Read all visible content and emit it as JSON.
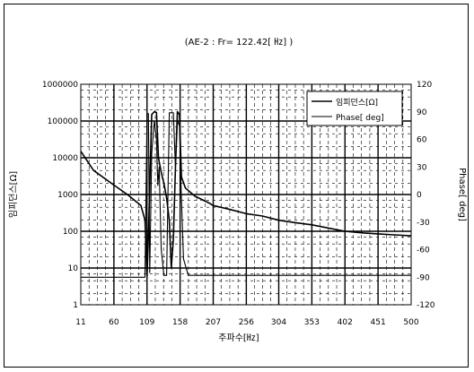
{
  "chart_data": {
    "type": "line",
    "title": "(AE-2 : Fr= 122.42[ ㎐] )",
    "xlabel": "주파수[㎐]",
    "ylabel": "임피던스[Ω]",
    "y2label": "Phase[ deg]",
    "x_ticks": [
      "11",
      "60",
      "109",
      "158",
      "207",
      "256",
      "304",
      "353",
      "402",
      "451",
      "500"
    ],
    "xlim": [
      11,
      500
    ],
    "y_scale": "log",
    "ylim": [
      1,
      1000000
    ],
    "y_ticks": [
      "1000000",
      "100000",
      "10000",
      "1000",
      "100",
      "10",
      "1"
    ],
    "y2lim": [
      -120,
      120
    ],
    "y2_ticks": [
      "120",
      "90",
      "60",
      "30",
      "0",
      "-30",
      "-60",
      "-90",
      "-120"
    ],
    "grid": true,
    "legend_position": "top-right",
    "series": [
      {
        "name": "임피던스[Ω]",
        "axis": "left",
        "points": [
          [
            11,
            15000
          ],
          [
            30,
            4500
          ],
          [
            60,
            1800
          ],
          [
            80,
            1000
          ],
          [
            100,
            500
          ],
          [
            106,
            200
          ],
          [
            109,
            6
          ],
          [
            111,
            80
          ],
          [
            116,
            150000
          ],
          [
            120,
            180000
          ],
          [
            123,
            170000
          ],
          [
            126,
            10000
          ],
          [
            130,
            4000
          ],
          [
            134,
            2000
          ],
          [
            138,
            800
          ],
          [
            142,
            200
          ],
          [
            145,
            10
          ],
          [
            148,
            60
          ],
          [
            151,
            5000
          ],
          [
            154,
            180000
          ],
          [
            157,
            150000
          ],
          [
            160,
            3000
          ],
          [
            166,
            1500
          ],
          [
            180,
            900
          ],
          [
            200,
            600
          ],
          [
            207,
            500
          ],
          [
            230,
            400
          ],
          [
            256,
            300
          ],
          [
            280,
            260
          ],
          [
            304,
            200
          ],
          [
            330,
            170
          ],
          [
            353,
            150
          ],
          [
            380,
            120
          ],
          [
            402,
            100
          ],
          [
            430,
            90
          ],
          [
            451,
            85
          ],
          [
            475,
            80
          ],
          [
            500,
            75
          ]
        ]
      },
      {
        "name": "Phase[ deg]",
        "axis": "right",
        "points": [
          [
            11,
            -90
          ],
          [
            106,
            -90
          ],
          [
            109,
            88
          ],
          [
            111,
            88
          ],
          [
            113,
            -85
          ],
          [
            116,
            45
          ],
          [
            120,
            80
          ],
          [
            123,
            60
          ],
          [
            125,
            10
          ],
          [
            127,
            30
          ],
          [
            130,
            -60
          ],
          [
            134,
            -88
          ],
          [
            138,
            -88
          ],
          [
            142,
            89
          ],
          [
            148,
            89
          ],
          [
            151,
            30
          ],
          [
            154,
            80
          ],
          [
            157,
            75
          ],
          [
            160,
            -5
          ],
          [
            163,
            -70
          ],
          [
            170,
            -88
          ],
          [
            500,
            -88
          ]
        ]
      }
    ]
  }
}
